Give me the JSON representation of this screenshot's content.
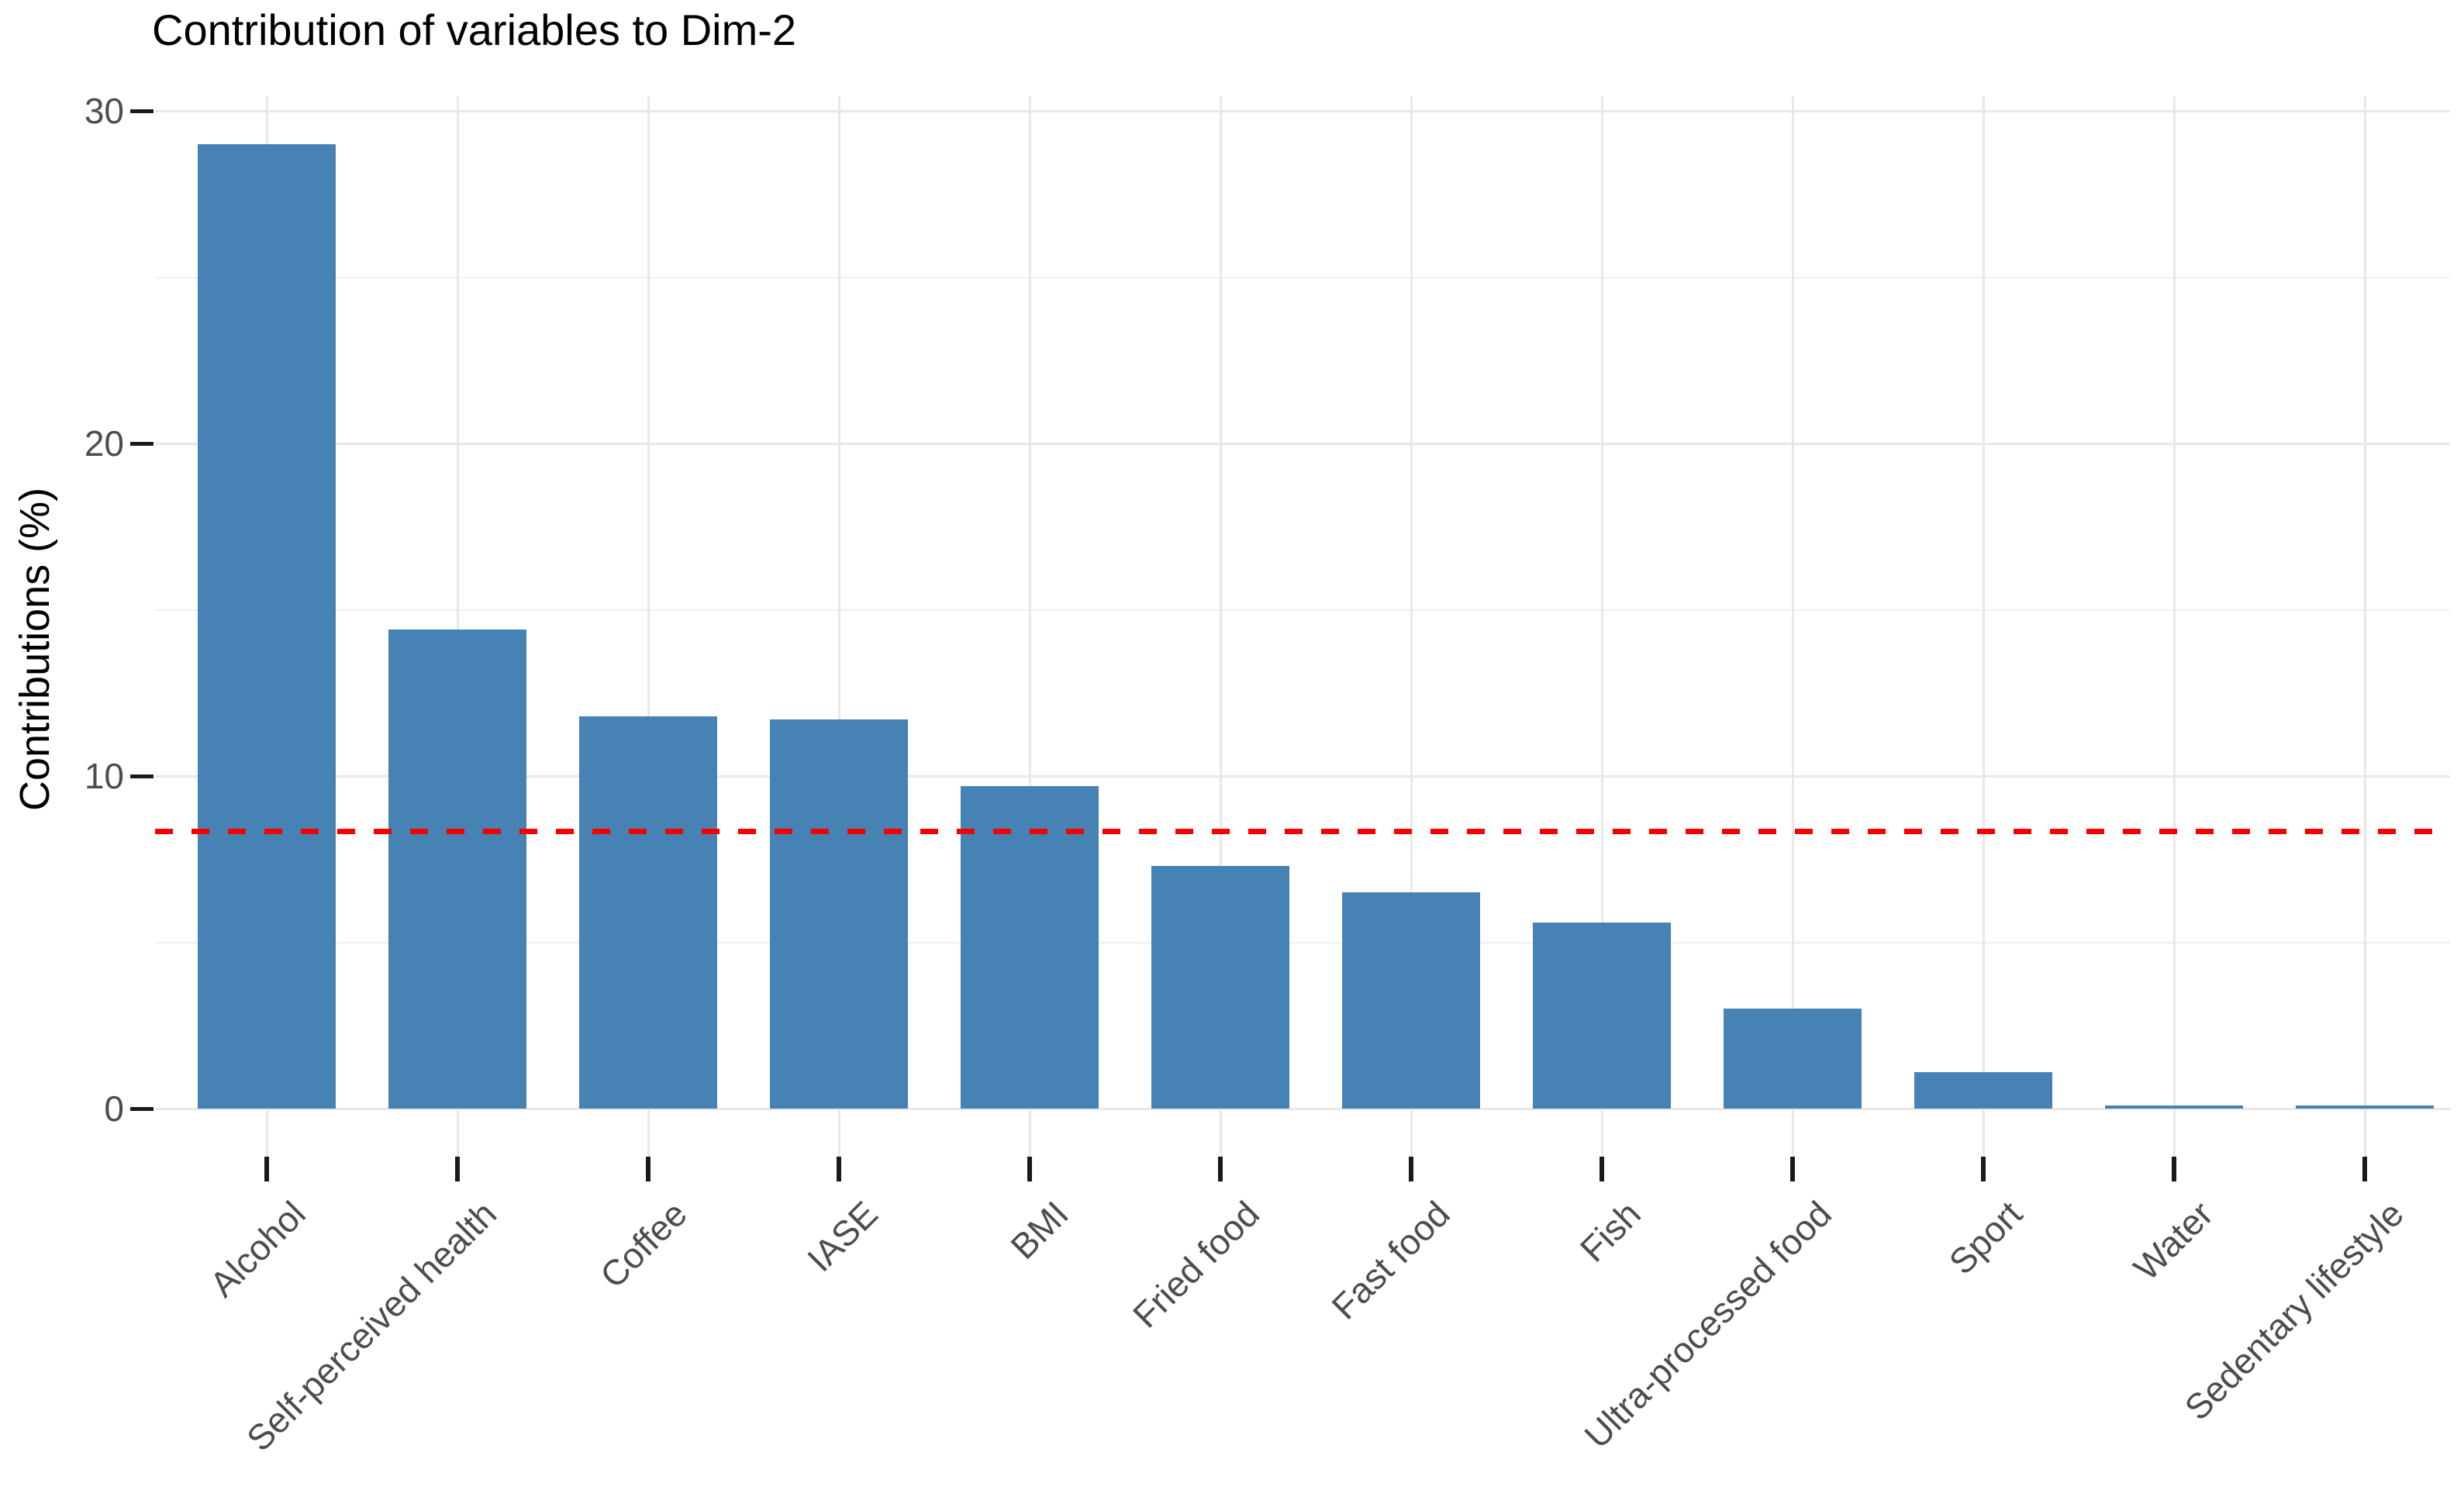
{
  "chart_data": {
    "type": "bar",
    "title": "Contribution of variables to Dim-2",
    "ylabel": "Contributions (%)",
    "xlabel": "",
    "categories": [
      "Alcohol",
      "Self-perceived health",
      "Coffee",
      "IASE",
      "BMI",
      "Fried food",
      "Fast food",
      "Fish",
      "Ultra-processed food",
      "Sport",
      "Water",
      "Sedentary lifestyle"
    ],
    "values": [
      29.0,
      14.4,
      11.8,
      11.7,
      9.7,
      7.3,
      6.5,
      5.6,
      3.0,
      1.1,
      0.1,
      0.1
    ],
    "ylim": [
      0,
      30.45
    ],
    "yticks": [
      0,
      10,
      20,
      30
    ],
    "minor_yticks": [
      5,
      15,
      25
    ],
    "grid": "horizontal major+minor, vertical at category centers",
    "legend": "none",
    "bar_color": "#4682B4",
    "reference_line": {
      "value": 8.33,
      "color": "#f40000",
      "style": "dashed"
    }
  }
}
